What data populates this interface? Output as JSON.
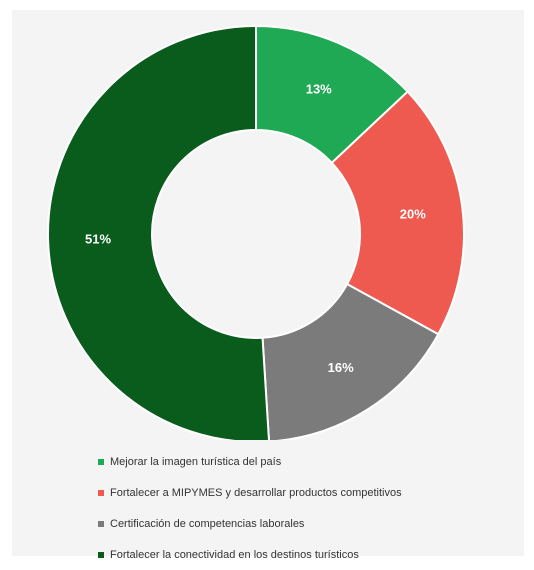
{
  "chart_data": {
    "type": "pie",
    "title": "",
    "categories": [
      "Mejorar la imagen turística del país",
      "Fortalecer a MIPYMES y desarrollar productos competitivos",
      "Certificación de competencias laborales",
      "Fortalecer la conectividad en los destinos turísticos"
    ],
    "values": [
      13,
      20,
      16,
      51
    ],
    "value_labels": [
      "13%",
      "20%",
      "16%",
      "51%"
    ],
    "colors": [
      "#1fa954",
      "#ee5a4f",
      "#7b7b7b",
      "#0a5c1c"
    ],
    "donut": true,
    "legend_placement": "bottom"
  }
}
